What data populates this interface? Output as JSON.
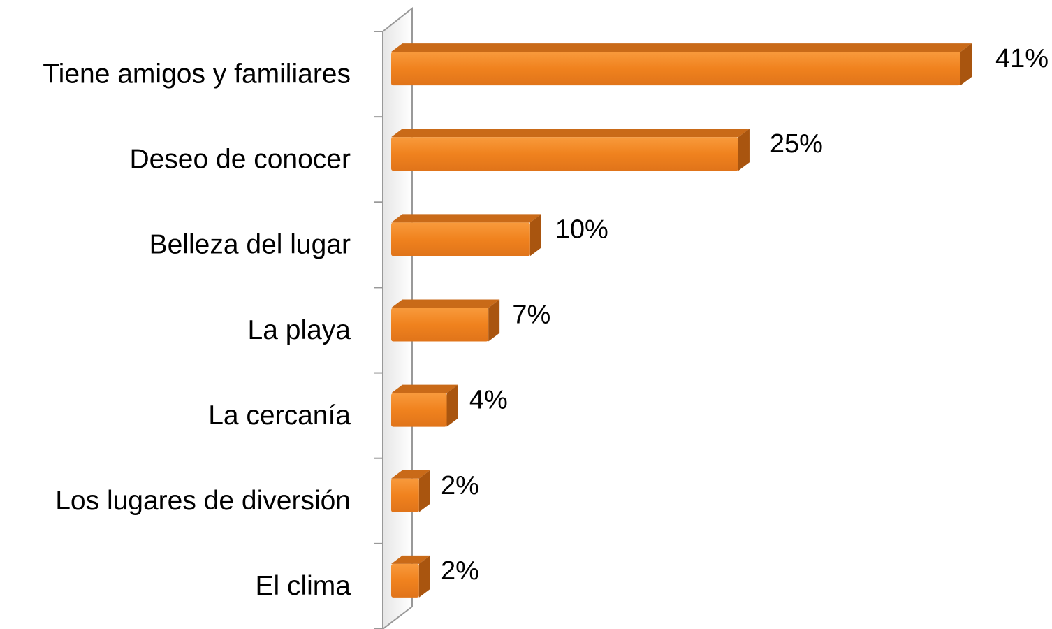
{
  "chart_data": {
    "type": "bar",
    "orientation": "horizontal",
    "categories": [
      "Tiene amigos y familiares",
      "Deseo de conocer",
      "Belleza del lugar",
      "La playa",
      "La cercanía",
      "Los lugares de diversión",
      "El clima"
    ],
    "values": [
      41,
      25,
      10,
      7,
      4,
      2,
      2
    ],
    "value_labels": [
      "41%",
      "25%",
      "10%",
      "7%",
      "4%",
      "2%",
      "2%"
    ],
    "color": "#f0821e"
  }
}
